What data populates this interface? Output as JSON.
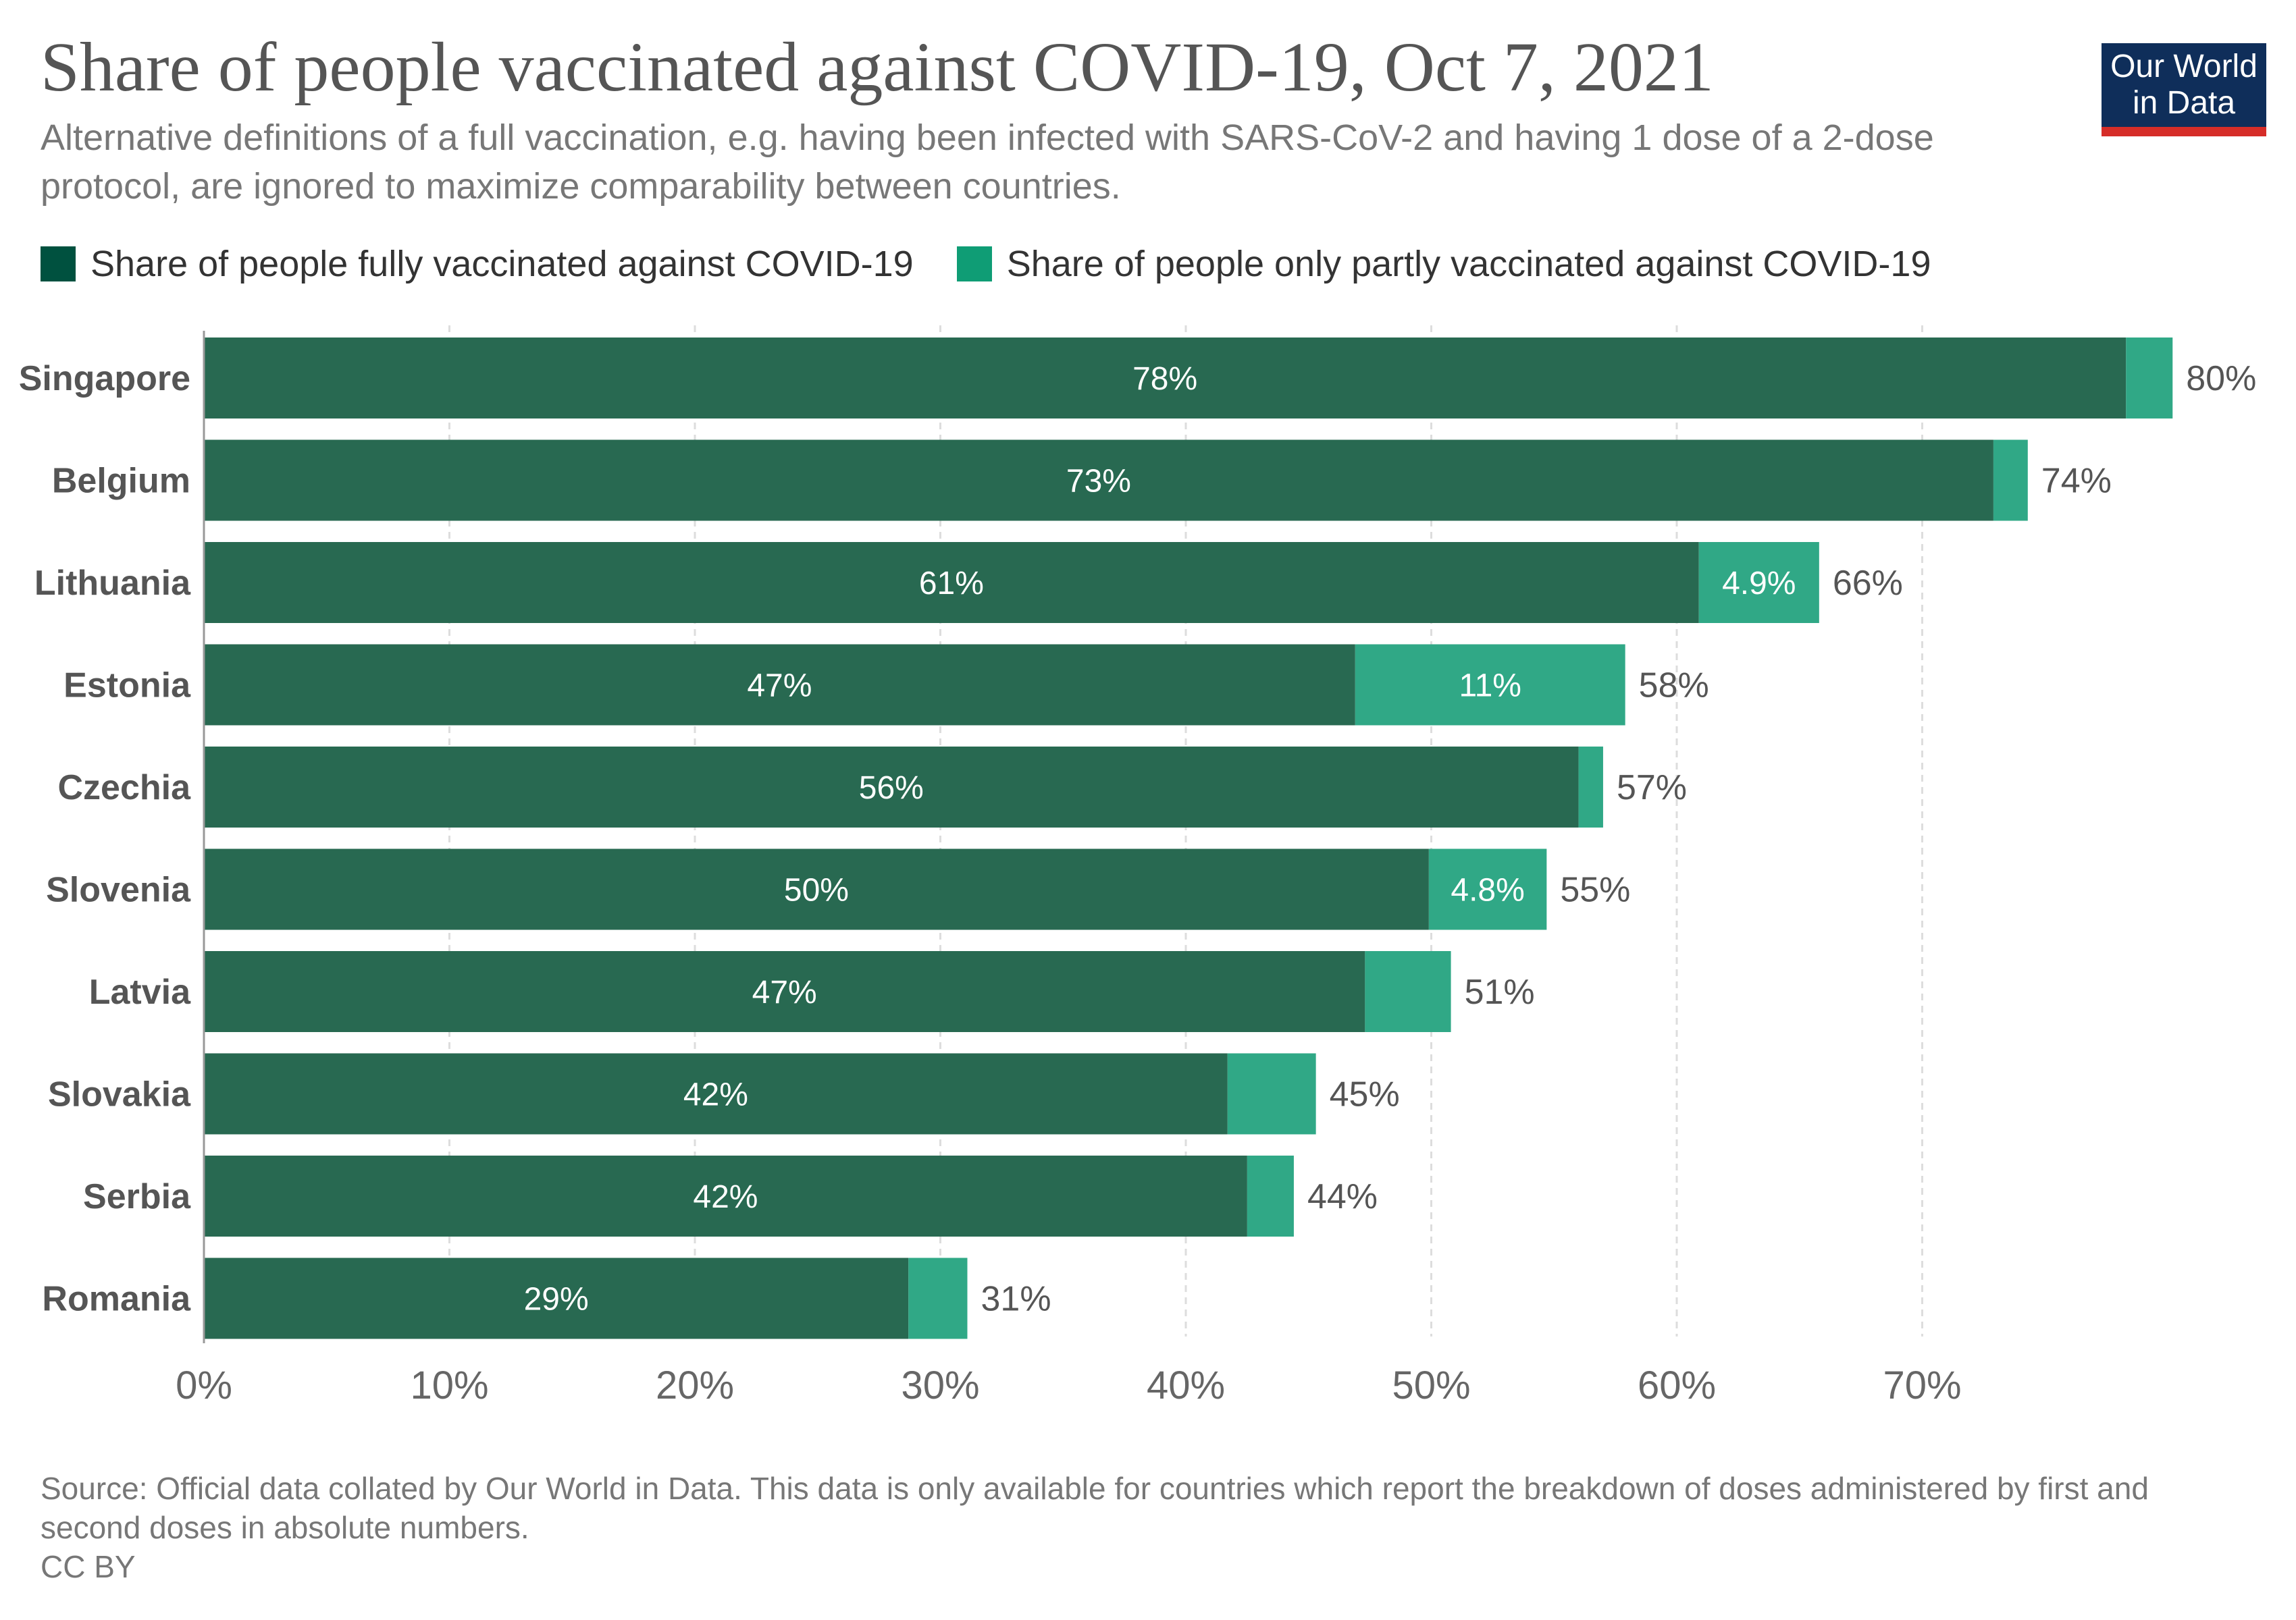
{
  "header": {
    "title": "Share of people vaccinated against COVID-19, Oct 7, 2021",
    "subtitle": "Alternative definitions of a full vaccination, e.g. having been infected with SARS-CoV-2 and having 1 dose of a 2-dose protocol, are ignored to maximize comparability between countries.",
    "logo_line1": "Our World",
    "logo_line2": "in Data"
  },
  "colors": {
    "fully": "#286951",
    "partly": "#30a886",
    "legend_fully": "#00513f",
    "legend_partly": "#0f9d75",
    "logo_bg": "#0f2e5a",
    "logo_accent": "#d62d28",
    "grid": "#dddddd",
    "axis_text": "#666666"
  },
  "chart_data": {
    "type": "bar",
    "orientation": "horizontal",
    "stacked": true,
    "categories": [
      "Singapore",
      "Belgium",
      "Lithuania",
      "Estonia",
      "Czechia",
      "Slovenia",
      "Latvia",
      "Slovakia",
      "Serbia",
      "Romania"
    ],
    "series": [
      {
        "name": "Share of people fully vaccinated against COVID-19",
        "values": [
          78.3,
          72.9,
          60.9,
          46.9,
          56.0,
          49.9,
          47.3,
          41.7,
          42.5,
          28.7
        ],
        "labels": [
          "78%",
          "73%",
          "61%",
          "47%",
          "56%",
          "50%",
          "47%",
          "42%",
          "42%",
          "29%"
        ]
      },
      {
        "name": "Share of people only partly vaccinated against COVID-19",
        "values": [
          1.9,
          1.4,
          4.9,
          11.0,
          1.0,
          4.8,
          3.5,
          3.6,
          1.9,
          2.4
        ],
        "labels": [
          "",
          "",
          "4.9%",
          "11%",
          "",
          "4.8%",
          "",
          "",
          "",
          ""
        ]
      }
    ],
    "total_labels": [
      "80%",
      "74%",
      "66%",
      "58%",
      "57%",
      "55%",
      "51%",
      "45%",
      "44%",
      "31%"
    ],
    "x_ticks": [
      0,
      10,
      20,
      30,
      40,
      50,
      60,
      70
    ],
    "x_tick_labels": [
      "0%",
      "10%",
      "20%",
      "30%",
      "40%",
      "50%",
      "60%",
      "70%"
    ],
    "xlim": [
      0,
      80
    ],
    "grid": true,
    "legend_position": "top-left"
  },
  "footer": {
    "source": "Source: Official data collated by Our World in Data. This data is only available for countries which report the breakdown of doses administered by first and second doses in absolute numbers.",
    "license": "CC BY"
  }
}
